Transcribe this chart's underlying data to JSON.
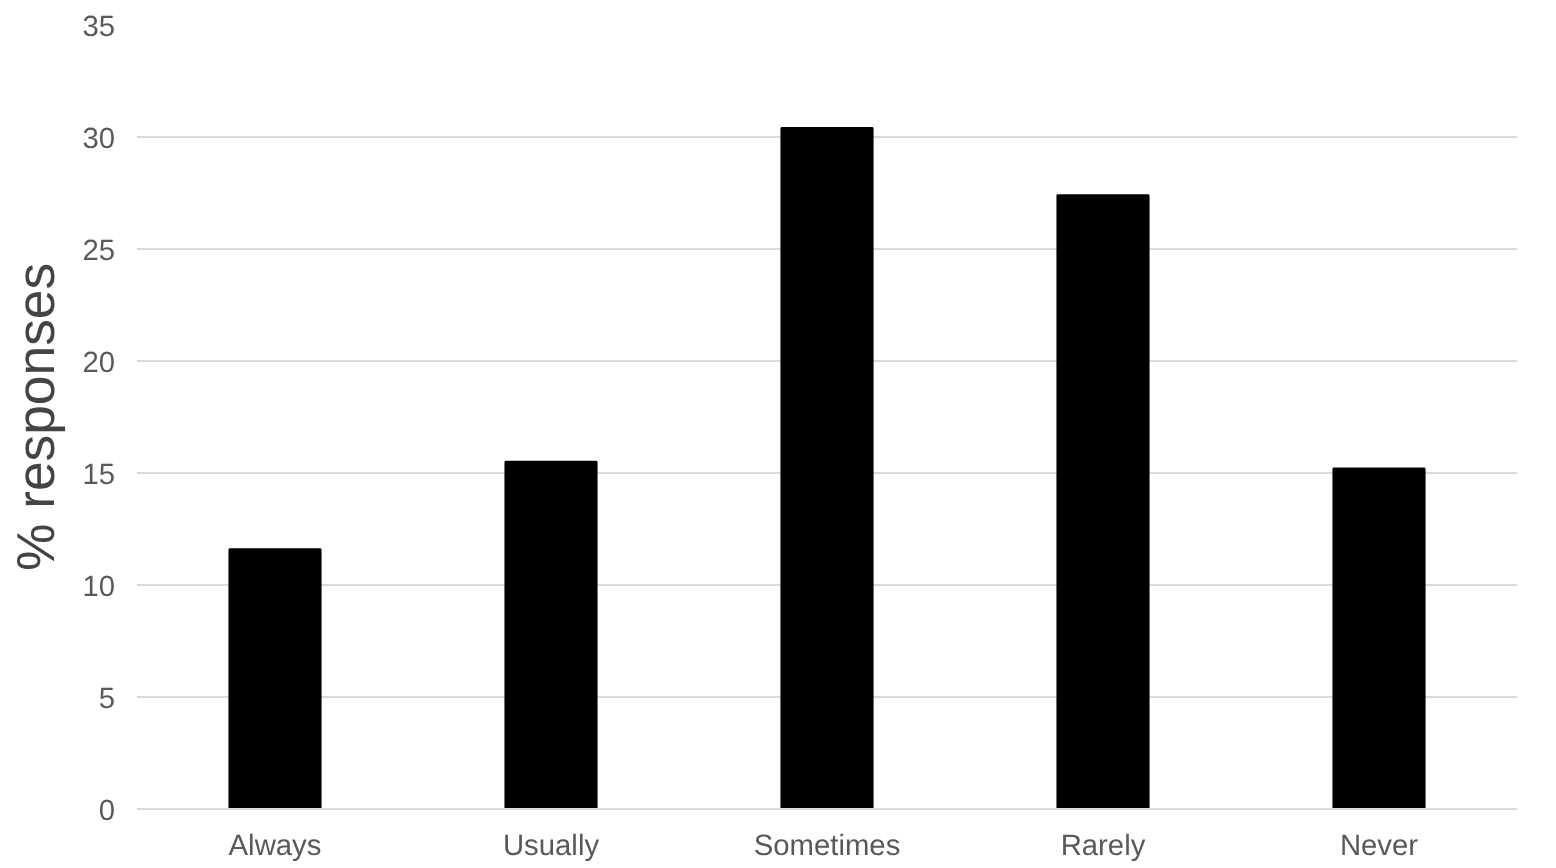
{
  "chart_data": {
    "type": "bar",
    "ylabel": "% responses",
    "categories": [
      "Always",
      "Usually",
      "Sometimes",
      "Rarely",
      "Never"
    ],
    "values": [
      11.6,
      15.5,
      30.4,
      27.4,
      15.2
    ],
    "color": "#000000",
    "ylim": [
      0,
      35
    ],
    "yticks": [
      0,
      5,
      10,
      15,
      20,
      25,
      30,
      35
    ],
    "grid": "y"
  }
}
